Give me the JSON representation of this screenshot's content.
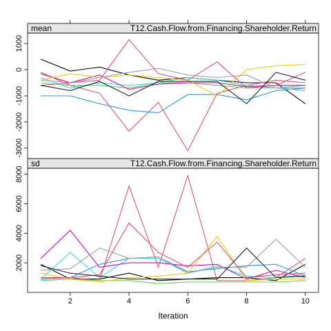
{
  "chart_data": {
    "type": "line",
    "xlabel": "Iteration",
    "x": [
      1,
      2,
      3,
      4,
      5,
      6,
      7,
      8,
      9,
      10
    ],
    "x_ticks": [
      2,
      4,
      6,
      8,
      10
    ],
    "variable": "T12.Cash.Flow.from.Financing.Shareholder.Return",
    "panels": [
      {
        "strip": "mean",
        "ylim": [
          -3400,
          1400
        ],
        "y_ticks": [
          1000,
          0,
          -1000,
          -2000,
          -3000
        ],
        "y_tick_labels": [
          "1000",
          "0",
          "-1000",
          "-2000",
          "-3000"
        ],
        "series": [
          {
            "color": "#000000",
            "values": [
              400,
              -50,
              100,
              -200,
              -400,
              -300,
              -400,
              -500,
              -500,
              -1300
            ]
          },
          {
            "color": "#df536b",
            "values": [
              -100,
              -600,
              -900,
              -2350,
              -1250,
              -3100,
              -900,
              -600,
              -400,
              -500
            ]
          },
          {
            "color": "#61d04f",
            "values": [
              -500,
              -600,
              -600,
              -700,
              -500,
              -500,
              -600,
              -700,
              -700,
              -700
            ]
          },
          {
            "color": "#2297e6",
            "values": [
              -1000,
              -1000,
              -1300,
              -1550,
              -1650,
              -950,
              -950,
              -1150,
              -800,
              -700
            ]
          },
          {
            "color": "#28e2e5",
            "values": [
              -300,
              -700,
              -500,
              -600,
              -500,
              -300,
              -400,
              -600,
              -700,
              -600
            ]
          },
          {
            "color": "#cd0bbc",
            "values": [
              -150,
              -500,
              -200,
              -750,
              -550,
              -500,
              -500,
              -650,
              -600,
              -600
            ]
          },
          {
            "color": "#f5c710",
            "values": [
              -400,
              -150,
              -300,
              -200,
              -300,
              -400,
              -1000,
              0,
              150,
              200
            ]
          },
          {
            "color": "#9e9e9e",
            "values": [
              -400,
              -500,
              -300,
              -100,
              50,
              -200,
              -300,
              -200,
              -700,
              -800
            ]
          },
          {
            "color": "#e05070",
            "values": [
              -600,
              -500,
              -400,
              1150,
              -150,
              -400,
              300,
              -700,
              -600,
              -100
            ]
          },
          {
            "color": "#222222",
            "values": [
              -600,
              -800,
              -450,
              -1000,
              -450,
              -450,
              -450,
              -1300,
              -100,
              -400
            ]
          }
        ]
      },
      {
        "strip": "sd",
        "ylim": [
          0,
          8400
        ],
        "y_ticks": [
          2000,
          4000,
          6000,
          8000
        ],
        "y_tick_labels": [
          "2000",
          "4000",
          "6000",
          "8000"
        ],
        "series": [
          {
            "color": "#000000",
            "values": [
              1900,
              900,
              900,
              1300,
              800,
              900,
              1000,
              1000,
              800,
              1900
            ]
          },
          {
            "color": "#df536b",
            "values": [
              900,
              1000,
              800,
              7200,
              1700,
              7900,
              800,
              800,
              1000,
              2300
            ]
          },
          {
            "color": "#61d04f",
            "values": [
              800,
              900,
              800,
              800,
              600,
              700,
              700,
              700,
              700,
              800
            ]
          },
          {
            "color": "#2297e6",
            "values": [
              900,
              1000,
              1900,
              2300,
              2400,
              1400,
              1600,
              1800,
              1900,
              1100
            ]
          },
          {
            "color": "#28e2e5",
            "values": [
              900,
              2700,
              1000,
              2300,
              2300,
              1300,
              1800,
              1100,
              1000,
              1200
            ]
          },
          {
            "color": "#cd0bbc",
            "values": [
              2300,
              4200,
              1700,
              2000,
              2000,
              1800,
              1900,
              900,
              1500,
              1000
            ]
          },
          {
            "color": "#f5c710",
            "values": [
              1300,
              900,
              700,
              1000,
              1100,
              1300,
              3800,
              800,
              900,
              900
            ]
          },
          {
            "color": "#9e9e9e",
            "values": [
              1500,
              1600,
              3000,
              2300,
              2400,
              1300,
              1700,
              1700,
              3600,
              1700
            ]
          },
          {
            "color": "#e05070",
            "values": [
              1000,
              1000,
              1200,
              4700,
              2700,
              1700,
              3400,
              1000,
              1200,
              1300
            ]
          },
          {
            "color": "#222222",
            "values": [
              1800,
              1300,
              1100,
              900,
              900,
              900,
              900,
              3000,
              1000,
              1100
            ]
          }
        ]
      }
    ]
  }
}
